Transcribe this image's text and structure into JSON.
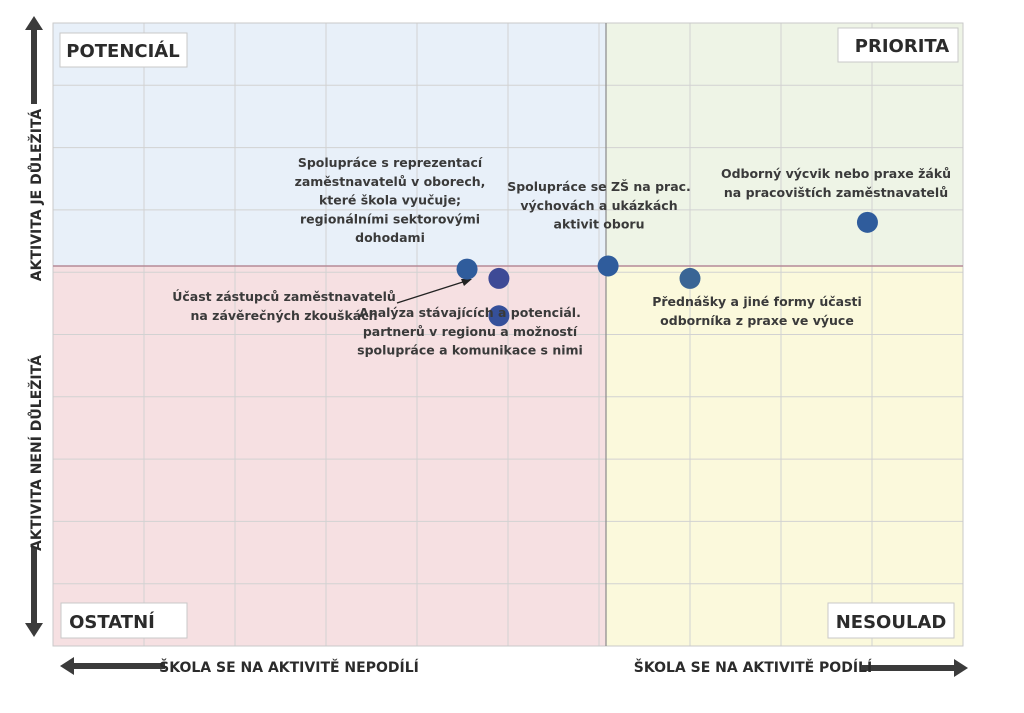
{
  "chart_data": {
    "type": "scatter",
    "quadrants": {
      "top_left": {
        "label": "POTENCIÁL",
        "color": "#e8f0f9"
      },
      "top_right": {
        "label": "PRIORITA",
        "color": "#eef4e6"
      },
      "bottom_left": {
        "label": "OSTATNÍ",
        "color": "#f6e0e2"
      },
      "bottom_right": {
        "label": "NESOULAD",
        "color": "#fbf9dc"
      }
    },
    "xlabel_left": "ŠKOLA SE NA AKTIVITĚ NEPODÍLÍ",
    "xlabel_right": "ŠKOLA SE NA AKTIVITĚ PODÍLÍ",
    "ylabel_top": "AKTIVITA JE DŮLEŽITÁ",
    "ylabel_bottom": "AKTIVITA NENÍ DŮLEŽITÁ",
    "xlim": [
      0,
      10
    ],
    "ylim": [
      0,
      10
    ],
    "grid": true,
    "point_color": "#2f5c9c",
    "points": [
      {
        "x": 4.55,
        "y": 6.05,
        "color": "#2f5c9c",
        "label": [
          "Spolupráce s reprezentací",
          "zaměstnavatelů v oborech,",
          "které škola vyučuje;",
          "regionálními sektorovými",
          "dohodami"
        ]
      },
      {
        "x": 4.9,
        "y": 5.9,
        "color": "#3e4a96",
        "label": [
          "Účast zástupců zaměstnavatelů",
          "na závěrečných zkouškách"
        ]
      },
      {
        "x": 4.9,
        "y": 5.3,
        "color": "#35509a",
        "label": [
          "Analýza stávajících a potenciál.",
          "partnerů v regionu a možností",
          "spolupráce a komunikace s nimi"
        ]
      },
      {
        "x": 6.1,
        "y": 6.1,
        "color": "#2f5c9c",
        "label": [
          "Spolupráce se ZŠ na prac.",
          "výchovách a ukázkách",
          "aktivit oboru"
        ]
      },
      {
        "x": 7.0,
        "y": 5.9,
        "color": "#3a6595",
        "label": [
          "Přednášky a jiné formy účasti",
          "odborníka z praxe ve výuce"
        ]
      },
      {
        "x": 8.95,
        "y": 6.8,
        "color": "#2f5c9c",
        "label": [
          "Odborný výcvik nebo praxe žáků",
          "na pracovištích zaměstnavatelů"
        ]
      }
    ]
  }
}
